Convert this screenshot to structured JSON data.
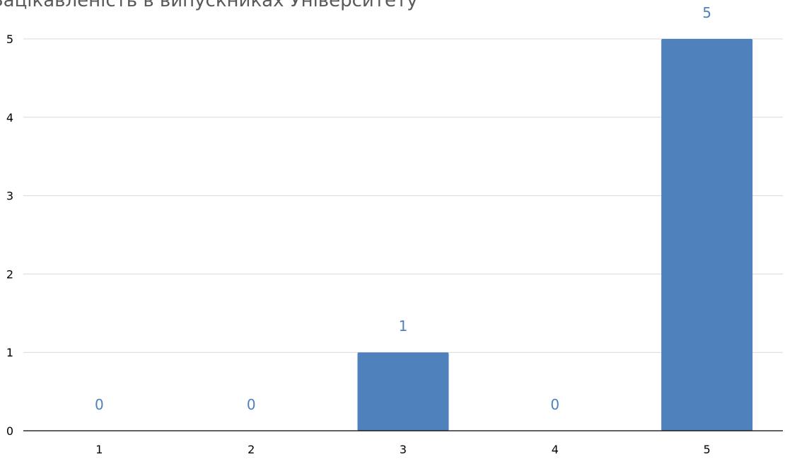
{
  "chart_data": {
    "type": "bar",
    "title": "Зацікавленість в випускниках Університету",
    "categories": [
      "1",
      "2",
      "3",
      "4",
      "5"
    ],
    "values": [
      0,
      0,
      1,
      0,
      5
    ],
    "data_labels": [
      "0",
      "0",
      "1",
      "0",
      "5"
    ],
    "ylim": [
      0,
      5
    ],
    "yticks": [
      "0",
      "1",
      "2",
      "3",
      "4",
      "5"
    ],
    "grid": true,
    "legend": "none"
  },
  "colors": {
    "bar": "#4F81BD",
    "data_label": "#4F81BD",
    "gridline": "#D9D9D9",
    "axis": "#000000",
    "tick_label": "#000000",
    "title": "#595959"
  }
}
